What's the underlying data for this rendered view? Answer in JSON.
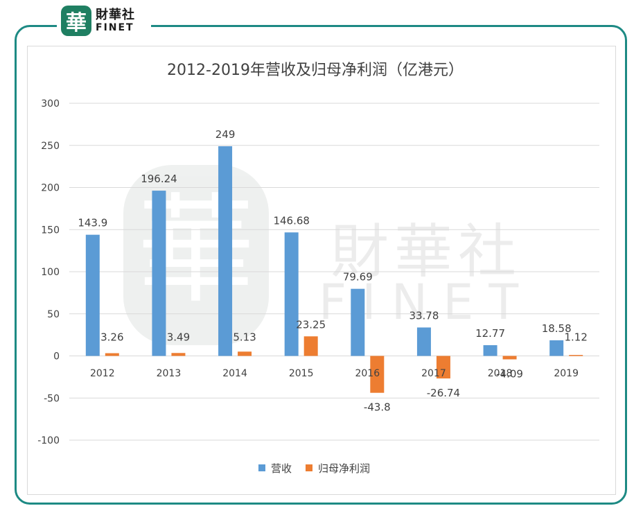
{
  "logo": {
    "mark": "華",
    "cn": "財華社",
    "en": "FINET"
  },
  "watermark": {
    "cn": "財華社",
    "en": "FINET",
    "mark": "華"
  },
  "colors": {
    "frame": "#1d8a84",
    "revenue": "#5b9bd5",
    "profit": "#ed7d31",
    "grid": "#d9d9d9",
    "text": "#404040"
  },
  "chart_data": {
    "type": "bar",
    "title": "2012-2019年营收及归母净利润（亿港元）",
    "categories": [
      "2012",
      "2013",
      "2014",
      "2015",
      "2016",
      "2017",
      "2018",
      "2019"
    ],
    "series": [
      {
        "name": "营收",
        "values": [
          143.9,
          196.24,
          249,
          146.68,
          79.69,
          33.78,
          12.77,
          18.58
        ],
        "labels": [
          "143.9",
          "196.24",
          "249",
          "146.68",
          "79.69",
          "33.78",
          "12.77",
          "18.58"
        ]
      },
      {
        "name": "归母净利润",
        "values": [
          3.26,
          3.49,
          5.13,
          23.25,
          -43.8,
          -26.74,
          -4.09,
          1.12
        ],
        "labels": [
          "3.26",
          "3.49",
          "5.13",
          "23.25",
          "-43.8",
          "-26.74",
          "-4.09",
          "1.12"
        ]
      }
    ],
    "yticks": [
      "300",
      "250",
      "200",
      "150",
      "100",
      "50",
      "0",
      "-50",
      "-100"
    ],
    "ylim": [
      -100,
      300
    ],
    "legend": "bottom",
    "grid": true
  }
}
